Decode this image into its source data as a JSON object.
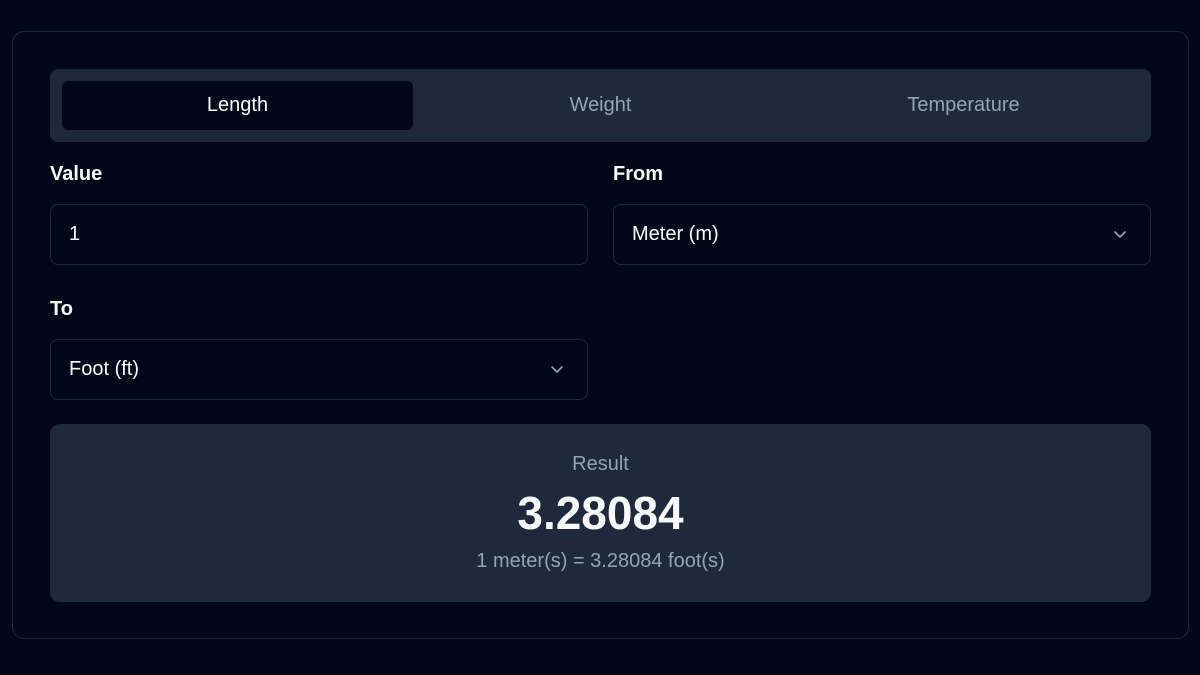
{
  "tabs": [
    {
      "label": "Length",
      "active": true
    },
    {
      "label": "Weight",
      "active": false
    },
    {
      "label": "Temperature",
      "active": false
    }
  ],
  "value": {
    "label": "Value",
    "current": "1"
  },
  "from": {
    "label": "From",
    "selected": "Meter (m)"
  },
  "to": {
    "label": "To",
    "selected": "Foot (ft)"
  },
  "result": {
    "label": "Result",
    "value": "3.28084",
    "description": "1 meter(s) = 3.28084 foot(s)"
  },
  "colors": {
    "background": "#020817",
    "surface": "#1e293b",
    "muted_text": "#94a3b8",
    "text": "#f8fafc"
  }
}
